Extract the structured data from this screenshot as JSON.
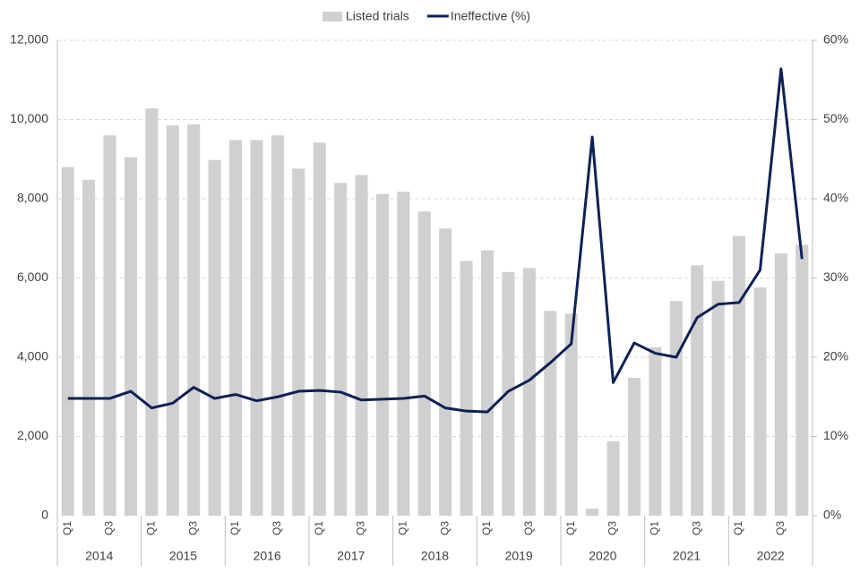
{
  "chart_data": {
    "type": "bar-line",
    "categories": [
      "Q1",
      null,
      "Q3",
      null,
      "Q1",
      null,
      "Q3",
      null,
      "Q1",
      null,
      "Q3",
      null,
      "Q1",
      null,
      "Q3",
      null,
      "Q1",
      null,
      "Q3",
      null,
      "Q1",
      null,
      "Q3",
      null,
      "Q1",
      null,
      "Q3",
      null,
      "Q1",
      null,
      "Q3",
      null,
      "Q1",
      null,
      "Q3",
      null
    ],
    "groups": [
      "2014",
      "2015",
      "2016",
      "2017",
      "2018",
      "2019",
      "2020",
      "2021",
      "2022"
    ],
    "series": [
      {
        "name": "Listed trials",
        "type": "bar",
        "color": "#d0d0d0",
        "values": [
          8800,
          8480,
          9600,
          9050,
          10280,
          9850,
          9880,
          8980,
          9480,
          9480,
          9600,
          8760,
          9420,
          8400,
          8600,
          8120,
          8180,
          7680,
          7250,
          6430,
          6700,
          6150,
          6250,
          5170,
          5100,
          180,
          1880,
          3480,
          4250,
          5420,
          6320,
          5930,
          7060,
          5760,
          6620,
          6840
        ]
      },
      {
        "name": "Ineffective (%)",
        "type": "line",
        "axis": "y2",
        "color": "#0d2157",
        "values": [
          14.8,
          14.8,
          14.8,
          15.7,
          13.6,
          14.2,
          16.2,
          14.8,
          15.3,
          14.5,
          15.0,
          15.7,
          15.8,
          15.6,
          14.6,
          14.7,
          14.8,
          15.1,
          13.6,
          13.2,
          13.1,
          15.7,
          17.1,
          19.3,
          21.7,
          47.8,
          16.8,
          21.8,
          20.5,
          20.0,
          25.0,
          26.7,
          26.9,
          31.0,
          56.4,
          32.4
        ]
      }
    ],
    "ylim": [
      0,
      12000
    ],
    "yticks": [
      0,
      {
        "value": 2000,
        "label": "2,000"
      },
      {
        "value": 4000,
        "label": "4,000"
      },
      {
        "value": 6000,
        "label": "6,000"
      },
      {
        "value": 8000,
        "label": "8,000"
      },
      {
        "value": 10000,
        "label": "10,000"
      },
      {
        "value": 12000,
        "label": "12,000"
      }
    ],
    "y2lim": [
      0,
      60
    ],
    "y2ticks": [
      {
        "value": 0,
        "label": "0%"
      },
      {
        "value": 10,
        "label": "10%"
      },
      {
        "value": 20,
        "label": "20%"
      },
      {
        "value": 30,
        "label": "30%"
      },
      {
        "value": 40,
        "label": "40%"
      },
      {
        "value": 50,
        "label": "50%"
      },
      {
        "value": 60,
        "label": "60%"
      }
    ],
    "grid": true,
    "legend": "top"
  }
}
